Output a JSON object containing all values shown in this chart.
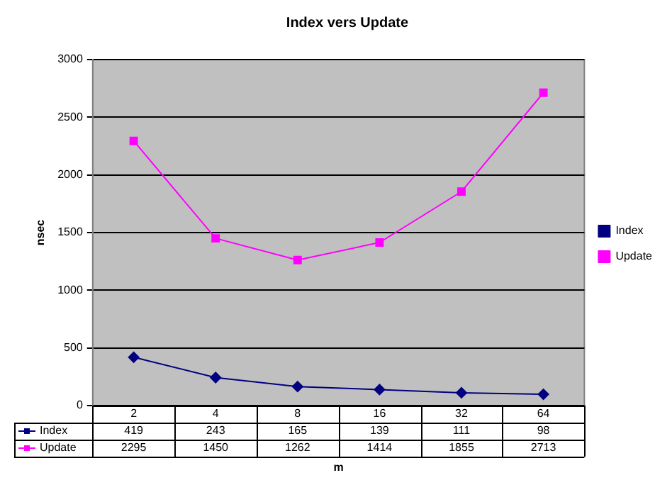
{
  "chart_data": {
    "type": "line",
    "title": "Index vers Update",
    "xlabel": "m",
    "ylabel": "nsec",
    "categories": [
      "2",
      "4",
      "8",
      "16",
      "32",
      "64"
    ],
    "series": [
      {
        "name": "Index",
        "color": "#000080",
        "marker": "diamond",
        "values": [
          419,
          243,
          165,
          139,
          111,
          98
        ]
      },
      {
        "name": "Update",
        "color": "#ff00ff",
        "marker": "square",
        "values": [
          2295,
          1450,
          1262,
          1414,
          1855,
          2713
        ]
      }
    ],
    "ylim": [
      0,
      3000
    ],
    "yticks": [
      0,
      500,
      1000,
      1500,
      2000,
      2500,
      3000
    ],
    "grid": "y",
    "legend": "right",
    "data_labels": true
  }
}
